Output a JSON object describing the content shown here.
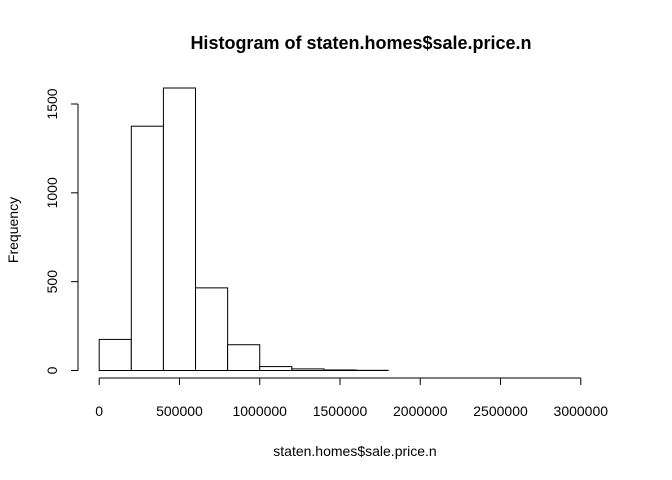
{
  "chart_data": {
    "type": "bar",
    "title": "Histogram of staten.homes$sale.price.n",
    "xlabel": "staten.homes$sale.price.n",
    "ylabel": "Frequency",
    "bins": [
      {
        "start": 0,
        "end": 200000,
        "count": 175
      },
      {
        "start": 200000,
        "end": 400000,
        "count": 1375
      },
      {
        "start": 400000,
        "end": 600000,
        "count": 1590
      },
      {
        "start": 600000,
        "end": 800000,
        "count": 465
      },
      {
        "start": 800000,
        "end": 1000000,
        "count": 145
      },
      {
        "start": 1000000,
        "end": 1200000,
        "count": 22
      },
      {
        "start": 1200000,
        "end": 1400000,
        "count": 9
      },
      {
        "start": 1400000,
        "end": 1600000,
        "count": 3
      },
      {
        "start": 1600000,
        "end": 1800000,
        "count": 1
      },
      {
        "start": 1800000,
        "end": 2000000,
        "count": 0
      },
      {
        "start": 2000000,
        "end": 2200000,
        "count": 0
      },
      {
        "start": 2200000,
        "end": 2400000,
        "count": 0
      },
      {
        "start": 2400000,
        "end": 2600000,
        "count": 0
      },
      {
        "start": 2600000,
        "end": 2800000,
        "count": 0
      },
      {
        "start": 2800000,
        "end": 3000000,
        "count": 0
      },
      {
        "start": 3000000,
        "end": 3200000,
        "count": 0
      }
    ],
    "xlim": [
      0,
      3200000
    ],
    "ylim": [
      0,
      1590
    ],
    "x_ticks": [
      0,
      500000,
      1000000,
      1500000,
      2000000,
      2500000,
      3000000
    ],
    "x_tick_labels": [
      "0",
      "500000",
      "1000000",
      "1500000",
      "2000000",
      "2500000",
      "3000000"
    ],
    "y_ticks": [
      0,
      500,
      1000,
      1500
    ],
    "y_tick_labels": [
      "0",
      "500",
      "1000",
      "1500"
    ],
    "grid": false,
    "colors": {
      "bar_fill": "#ffffff",
      "bar_stroke": "#000000",
      "axis": "#000000",
      "background": "#ffffff"
    }
  }
}
